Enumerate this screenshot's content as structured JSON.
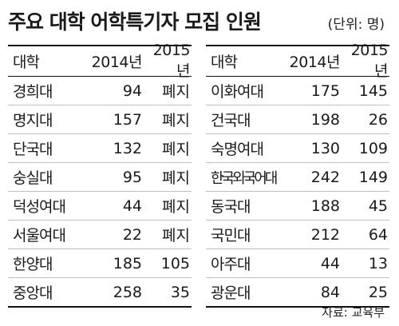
{
  "title": "주요 대학 어학특기자 모집 인원",
  "unit": "(단위: 명)",
  "headers": {
    "school": "대학",
    "y2014": "2014년",
    "y2015": "2015년"
  },
  "left_rows": [
    {
      "school": "경희대",
      "y2014": "94",
      "y2015": "폐지"
    },
    {
      "school": "명지대",
      "y2014": "157",
      "y2015": "폐지"
    },
    {
      "school": "단국대",
      "y2014": "132",
      "y2015": "폐지"
    },
    {
      "school": "숭실대",
      "y2014": "95",
      "y2015": "폐지"
    },
    {
      "school": "덕성여대",
      "y2014": "44",
      "y2015": "폐지"
    },
    {
      "school": "서울여대",
      "y2014": "22",
      "y2015": "폐지"
    },
    {
      "school": "한양대",
      "y2014": "185",
      "y2015": "105"
    },
    {
      "school": "중앙대",
      "y2014": "258",
      "y2015": "35"
    }
  ],
  "right_rows": [
    {
      "school": "이화여대",
      "y2014": "175",
      "y2015": "145"
    },
    {
      "school": "건국대",
      "y2014": "198",
      "y2015": "26"
    },
    {
      "school": "숙명여대",
      "y2014": "130",
      "y2015": "109"
    },
    {
      "school": "한국외국어대",
      "y2014": "242",
      "y2015": "149"
    },
    {
      "school": "동국대",
      "y2014": "188",
      "y2015": "45"
    },
    {
      "school": "국민대",
      "y2014": "212",
      "y2015": "64"
    },
    {
      "school": "아주대",
      "y2014": "44",
      "y2015": "13"
    },
    {
      "school": "광운대",
      "y2014": "84",
      "y2015": "25"
    }
  ],
  "source": "자료: 교육부"
}
